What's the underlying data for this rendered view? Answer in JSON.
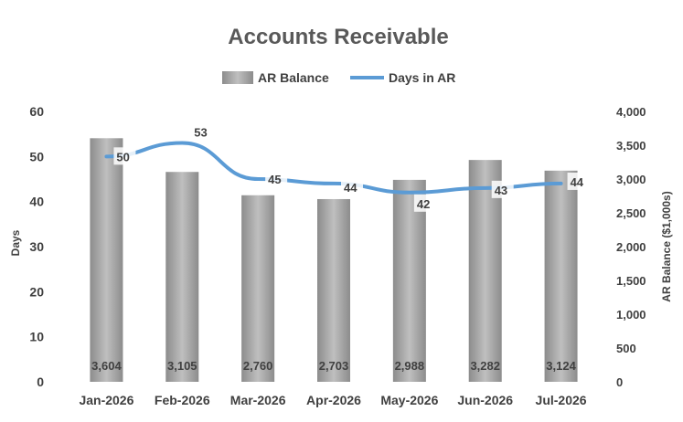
{
  "chart_data": {
    "type": "bar",
    "title": "Accounts Receivable",
    "categories": [
      "Jan-2026",
      "Feb-2026",
      "Mar-2026",
      "Apr-2026",
      "May-2026",
      "Jun-2026",
      "Jul-2026"
    ],
    "series": [
      {
        "name": "AR Balance",
        "type": "bar",
        "axis": "right",
        "values": [
          3604,
          3105,
          2760,
          2703,
          2988,
          3282,
          3124
        ],
        "labels": [
          "3,604",
          "3,105",
          "2,760",
          "2,703",
          "2,988",
          "3,282",
          "3,124"
        ],
        "color": "#a6a6a6"
      },
      {
        "name": "Days in AR",
        "type": "line",
        "axis": "left",
        "values": [
          50,
          53,
          45,
          44,
          42,
          43,
          44
        ],
        "labels": [
          "50",
          "53",
          "45",
          "44",
          "42",
          "43",
          "44"
        ],
        "color": "#5b9bd5"
      }
    ],
    "ylabel_left": "Days",
    "ylabel_right": "AR Balance ($1,000s)",
    "ylim_left": [
      0,
      60
    ],
    "ylim_right": [
      0,
      4000
    ],
    "yticks_left": [
      "0",
      "10",
      "20",
      "30",
      "40",
      "50",
      "60"
    ],
    "yticks_right": [
      "0",
      "500",
      "1,000",
      "1,500",
      "2,000",
      "2,500",
      "3,000",
      "3,500",
      "4,000"
    ],
    "legend_position": "top",
    "grid": false
  }
}
